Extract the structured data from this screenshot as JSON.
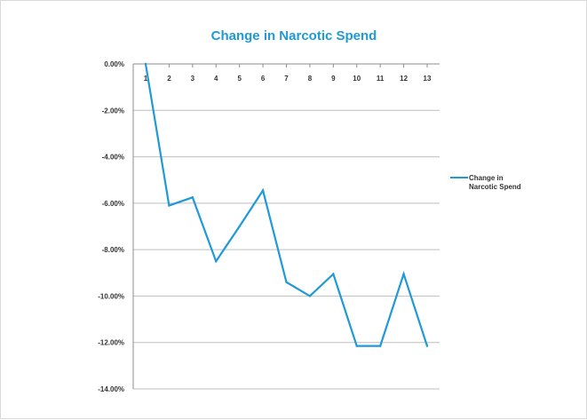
{
  "chart_data": {
    "type": "line",
    "title": "Change in Narcotic Spend",
    "x": [
      "1",
      "2",
      "3",
      "4",
      "5",
      "6",
      "7",
      "8",
      "9",
      "10",
      "11",
      "12",
      "13"
    ],
    "series": [
      {
        "name": "Change in Narcotic Spend",
        "color": "#1f9ad6",
        "values": [
          0.0,
          -6.1,
          -5.75,
          -8.5,
          -7.0,
          -5.45,
          -9.4,
          -10.0,
          -9.05,
          -12.15,
          -12.15,
          -9.05,
          -12.15
        ]
      }
    ],
    "yticks": [
      "0.00%",
      "-2.00%",
      "-4.00%",
      "-6.00%",
      "-8.00%",
      "-10.00%",
      "-12.00%",
      "-14.00%"
    ],
    "ylim": [
      -14,
      0
    ],
    "xlabel": "",
    "ylabel": "",
    "grid": true,
    "legend": "right"
  }
}
